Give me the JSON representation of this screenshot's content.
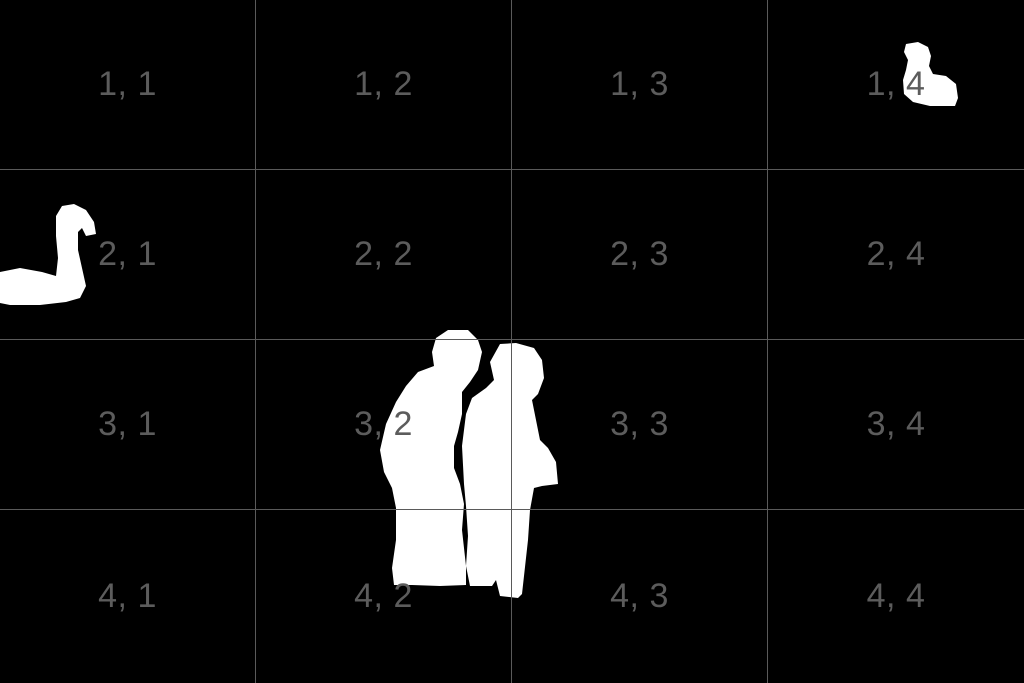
{
  "image": {
    "background_color": "#000000",
    "mask_color": "#ffffff",
    "grid_line_color": "#5a5a5a",
    "label_color": "#5c5c5c",
    "grid": {
      "rows": 4,
      "cols": 4
    },
    "cells": [
      [
        "1, 1",
        "1, 2",
        "1, 3",
        "1, 4"
      ],
      [
        "2, 1",
        "2, 2",
        "2, 3",
        "2, 4"
      ],
      [
        "3, 1",
        "3, 2",
        "3, 3",
        "3, 4"
      ],
      [
        "4, 1",
        "4, 2",
        "4, 3",
        "4, 4"
      ]
    ],
    "masked_objects": [
      "swan",
      "swan",
      "person",
      "person"
    ]
  }
}
